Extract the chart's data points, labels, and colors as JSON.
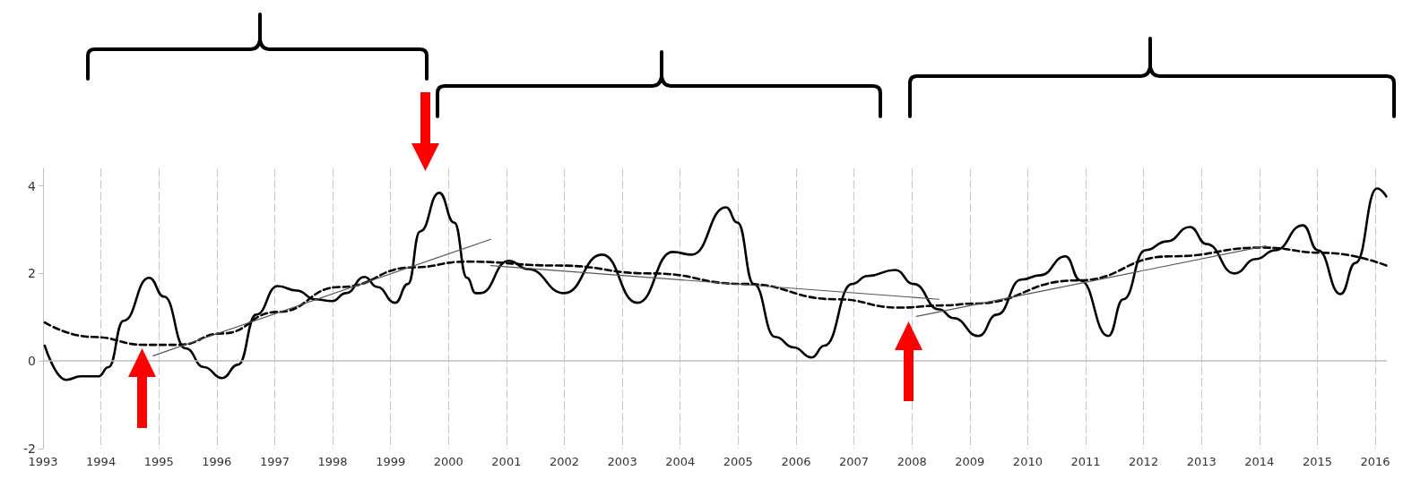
{
  "chart_data": {
    "type": "line",
    "xlim": [
      1993,
      2016.2
    ],
    "xticks": [
      1993,
      1994,
      1995,
      1996,
      1997,
      1998,
      1999,
      2000,
      2001,
      2002,
      2003,
      2004,
      2005,
      2006,
      2007,
      2008,
      2009,
      2010,
      2011,
      2012,
      2013,
      2014,
      2015,
      2016
    ],
    "ylim": [
      -2,
      4.4
    ],
    "yticks": [
      -2,
      0,
      2,
      4
    ],
    "grid": "x",
    "marker": "none",
    "ref_lines": [
      {
        "axis": "y",
        "value": 0,
        "color": "#bfbfbf"
      }
    ],
    "series": [
      {
        "color": "#000000",
        "line_style": "solid",
        "x": [
          1993.03,
          1993.4,
          1993.65,
          1993.96,
          1994.13,
          1994.39,
          1994.83,
          1995.09,
          1995.46,
          1995.78,
          1996.09,
          1996.37,
          1996.68,
          1997.05,
          1997.38,
          1997.7,
          1997.99,
          1998.23,
          1998.55,
          1998.77,
          1999.08,
          1999.3,
          1999.51,
          1999.84,
          2000.1,
          2000.32,
          2000.47,
          2000.55,
          2001.04,
          2001.37,
          2002.0,
          2002.65,
          2003.26,
          2003.87,
          2004.2,
          2004.79,
          2004.99,
          2005.27,
          2005.64,
          2005.96,
          2006.27,
          2006.49,
          2006.97,
          2007.23,
          2007.71,
          2008.03,
          2008.47,
          2008.72,
          2009.15,
          2009.47,
          2009.89,
          2010.22,
          2010.65,
          2010.91,
          2011.39,
          2011.65,
          2012.03,
          2012.4,
          2012.8,
          2013.09,
          2013.57,
          2013.94,
          2014.27,
          2014.75,
          2015.01,
          2015.4,
          2015.66,
          2016.03,
          2016.19
        ],
        "values": [
          0.35,
          -0.43,
          -0.35,
          -0.35,
          -0.14,
          0.92,
          1.9,
          1.47,
          0.29,
          -0.14,
          -0.39,
          -0.08,
          1.06,
          1.71,
          1.61,
          1.41,
          1.37,
          1.55,
          1.92,
          1.69,
          1.33,
          1.76,
          2.96,
          3.84,
          3.16,
          1.9,
          1.55,
          1.55,
          2.29,
          2.1,
          1.55,
          2.43,
          1.33,
          2.49,
          2.43,
          3.51,
          3.16,
          1.76,
          0.55,
          0.31,
          0.08,
          0.35,
          1.76,
          1.94,
          2.08,
          1.76,
          1.18,
          0.98,
          0.57,
          1.06,
          1.86,
          1.96,
          2.39,
          1.84,
          0.57,
          1.41,
          2.53,
          2.73,
          3.06,
          2.67,
          2.0,
          2.33,
          2.53,
          3.1,
          2.53,
          1.53,
          2.24,
          3.94,
          3.76
        ]
      },
      {
        "color": "#000000",
        "line_style": "dashed",
        "x": [
          1993.03,
          1993.85,
          1994.76,
          1995.35,
          1996.09,
          1997.05,
          1998.12,
          1999.4,
          2000.3,
          2001.89,
          2003.5,
          2005.1,
          2006.7,
          2007.77,
          2008.56,
          2009.04,
          2010.85,
          2012.46,
          2014.05,
          2015.12,
          2016.19
        ],
        "values": [
          0.88,
          0.55,
          0.37,
          0.37,
          0.63,
          1.12,
          1.69,
          2.14,
          2.27,
          2.18,
          2.0,
          1.76,
          1.41,
          1.22,
          1.27,
          1.31,
          1.84,
          2.39,
          2.59,
          2.47,
          2.18
        ]
      },
      {
        "color": "#555555",
        "line_style": "solid",
        "x": [
          1994.9,
          2000.73
        ],
        "values": [
          0.12,
          2.78
        ]
      },
      {
        "color": "#555555",
        "line_style": "solid",
        "x": [
          2000.73,
          2008.47
        ],
        "values": [
          2.18,
          1.41
        ]
      },
      {
        "color": "#555555",
        "line_style": "solid",
        "x": [
          2008.08,
          2014.11
        ],
        "values": [
          1.02,
          2.63
        ]
      }
    ]
  }
}
